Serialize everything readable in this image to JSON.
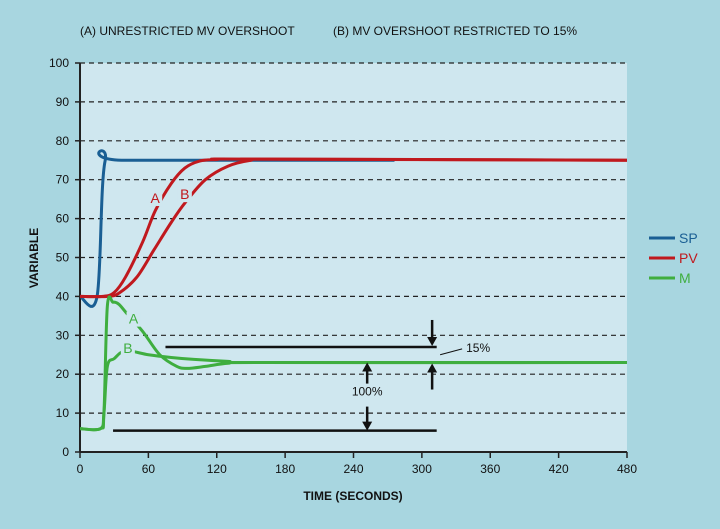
{
  "chart_data": {
    "type": "line",
    "title_a": "(A) UNRESTRICTED MV OVERSHOOT",
    "title_b": "(B) MV OVERSHOOT RESTRICTED TO 15%",
    "xlabel": "TIME (SECONDS)",
    "ylabel": "VARIABLE",
    "xlim": [
      0,
      480
    ],
    "ylim": [
      0,
      100
    ],
    "xticks": [
      0,
      60,
      120,
      180,
      240,
      300,
      360,
      420,
      480
    ],
    "yticks": [
      0,
      10,
      20,
      30,
      40,
      50,
      60,
      70,
      80,
      90,
      100
    ],
    "grid": "horizontal-dashed",
    "legend_placement": "right",
    "series": [
      {
        "name": "SP",
        "color": "#1a5f94",
        "x": [
          0,
          15,
          22,
          40,
          276
        ],
        "y": [
          40,
          40,
          74.8,
          75,
          75
        ]
      },
      {
        "name": "PV",
        "curve": "A",
        "color": "#c0191e",
        "x": [
          0,
          20,
          30,
          40,
          55,
          66,
          80,
          92,
          105,
          120,
          150,
          480
        ],
        "y": [
          40,
          40,
          41,
          45,
          54,
          62,
          69,
          73,
          74.8,
          75.2,
          75.3,
          75
        ]
      },
      {
        "name": "PV",
        "curve": "B",
        "color": "#c0191e",
        "x": [
          0,
          25,
          35,
          50,
          65,
          80,
          92,
          110,
          130,
          150,
          170,
          480
        ],
        "y": [
          40,
          40,
          41,
          45,
          52,
          59,
          64,
          70,
          73.5,
          75,
          75.3,
          75
        ]
      },
      {
        "name": "M",
        "curve": "A",
        "color": "#3fae3f",
        "x": [
          0,
          18,
          21,
          24,
          29,
          34,
          40,
          55,
          70,
          85,
          94,
          110,
          130,
          160,
          480
        ],
        "y": [
          6,
          6,
          10,
          37.5,
          38.5,
          38,
          36,
          31,
          25,
          22,
          21.5,
          22,
          22.8,
          23,
          23
        ]
      },
      {
        "name": "M",
        "curve": "B",
        "color": "#3fae3f",
        "x": [
          0,
          18,
          21,
          24,
          30,
          40,
          60,
          80,
          100,
          130,
          160,
          480
        ],
        "y": [
          6,
          6,
          10,
          22,
          24,
          26,
          25,
          24.3,
          23.8,
          23.3,
          23,
          23
        ]
      }
    ],
    "legend": [
      {
        "label": "SP",
        "color": "#1a5f94"
      },
      {
        "label": "PV",
        "color": "#c0191e"
      },
      {
        "label": "M",
        "color": "#3fae3f"
      }
    ],
    "curve_labels": [
      {
        "text": "A",
        "x": 66,
        "y": 64,
        "color": "#c0191e"
      },
      {
        "text": "B",
        "x": 92,
        "y": 65,
        "color": "#c0191e"
      },
      {
        "text": "A",
        "x": 47,
        "y": 33,
        "color": "#3fae3f"
      },
      {
        "text": "B",
        "x": 42,
        "y": 25.5,
        "color": "#3fae3f"
      }
    ],
    "annotations": [
      {
        "text": "15%",
        "limit_line": {
          "x": [
            75,
            313
          ],
          "y": 27
        },
        "arrow_x": 309
      },
      {
        "text": "100%",
        "base_line": {
          "x": [
            29,
            313
          ],
          "y": 5.5
        },
        "arrow_x": 252,
        "from": 5.5,
        "to": 23
      }
    ]
  }
}
